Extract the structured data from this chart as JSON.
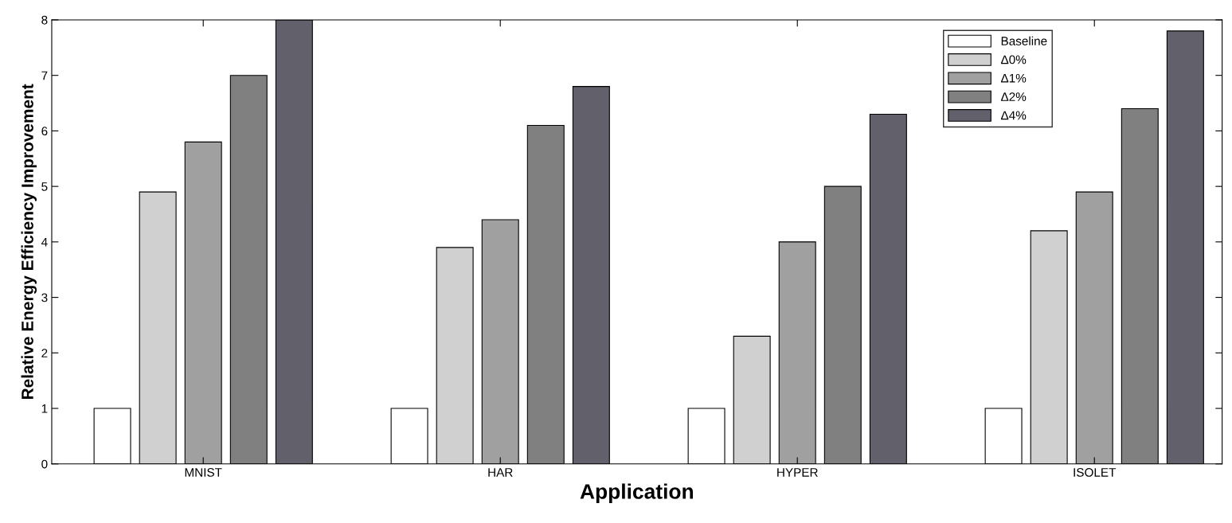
{
  "chart_data": {
    "type": "bar",
    "xlabel": "Application",
    "ylabel": "Relative Energy Efficiency Improvement",
    "categories": [
      "MNIST",
      "HAR",
      "HYPER",
      "ISOLET"
    ],
    "series": [
      {
        "name": "Baseline",
        "color": "#ffffff",
        "values": [
          1,
          1,
          1,
          1
        ]
      },
      {
        "name": "Δ0%",
        "color": "#d0d0d0",
        "values": [
          4.9,
          3.9,
          2.3,
          4.2
        ]
      },
      {
        "name": "Δ1%",
        "color": "#a0a0a0",
        "values": [
          5.8,
          4.4,
          4.0,
          4.9
        ]
      },
      {
        "name": "Δ2%",
        "color": "#808080",
        "values": [
          7.0,
          6.1,
          5.0,
          6.4
        ]
      },
      {
        "name": "Δ4%",
        "color": "#62616b",
        "values": [
          8.0,
          6.8,
          6.3,
          7.8
        ]
      }
    ],
    "ylim": [
      0,
      8
    ],
    "yticks": [
      0,
      1,
      2,
      3,
      4,
      5,
      6,
      7,
      8
    ],
    "grid": false,
    "legend": "top right"
  }
}
